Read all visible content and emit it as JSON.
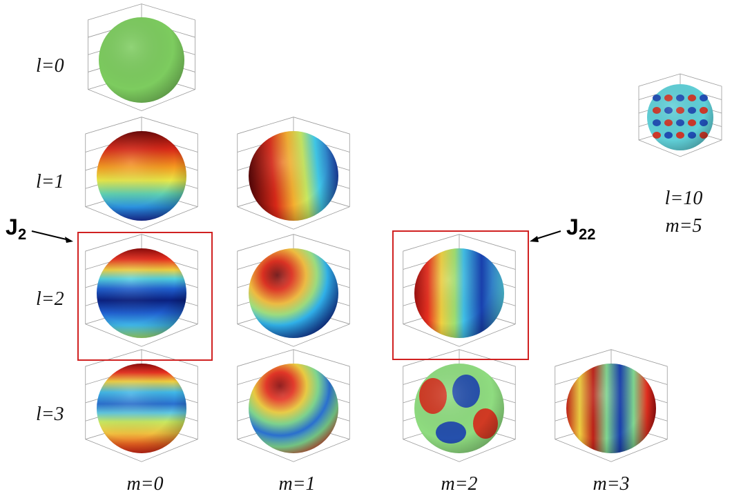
{
  "row_labels": [
    "l=0",
    "l=1",
    "l=2",
    "l=3"
  ],
  "column_labels": [
    "m=0",
    "m=1",
    "m=2",
    "m=3"
  ],
  "extra_sphere": {
    "l_label": "l=10",
    "m_label": "m=5"
  },
  "callouts": [
    {
      "symbol": "J",
      "subscript": "2"
    },
    {
      "symbol": "J",
      "subscript": "22"
    }
  ]
}
